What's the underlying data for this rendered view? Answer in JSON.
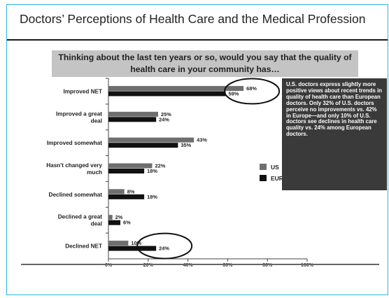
{
  "slide": {
    "title": "Doctors’ Perceptions of Health Care and the Medical Profession",
    "question": "Thinking about the last ten years or so, would you say that the quality of health care in your community has…",
    "note": "U.S. doctors express slightly more positive views about recent trends in quality of health care than European doctors. Only 32% of U.S. doctors perceive no improvements vs. 42% in Europe—and only 10% of U.S. doctors see declines in health care quality vs. 24% among European doctors."
  },
  "colors": {
    "us": "#6e6e6e",
    "europe": "#111111",
    "accent_border": "#29b6e6"
  },
  "chart_data": {
    "type": "bar",
    "orientation": "horizontal",
    "categories": [
      [
        "Improved NET"
      ],
      [
        "Improved a great",
        "deal"
      ],
      [
        "Improved somewhat"
      ],
      [
        "Hasn't changed very",
        "much"
      ],
      [
        "Declined somewhat"
      ],
      [
        "Declined a great",
        "deal"
      ],
      [
        "Declined NET"
      ]
    ],
    "series": [
      {
        "name": "US",
        "values": [
          68,
          25,
          43,
          22,
          8,
          2,
          10
        ],
        "labels": [
          "68%",
          "25%",
          "43%",
          "22%",
          "8%",
          "2%",
          "10%"
        ]
      },
      {
        "name": "EUROPE/CAN",
        "values": [
          59,
          24,
          35,
          18,
          18,
          6,
          24
        ],
        "labels": [
          "59%",
          "24%",
          "35%",
          "18%",
          "18%",
          "6%",
          "24%"
        ]
      }
    ],
    "x_ticks": [
      0,
      20,
      40,
      60,
      80,
      100
    ],
    "x_tick_labels": [
      "0%",
      "20%",
      "40%",
      "60%",
      "80%",
      "100%"
    ],
    "xlim": [
      0,
      100
    ],
    "legend": {
      "position": "right",
      "entries": [
        "US",
        "EUROPE/CAN"
      ]
    },
    "highlighted_categories": [
      "Improved NET",
      "Declined NET"
    ]
  }
}
